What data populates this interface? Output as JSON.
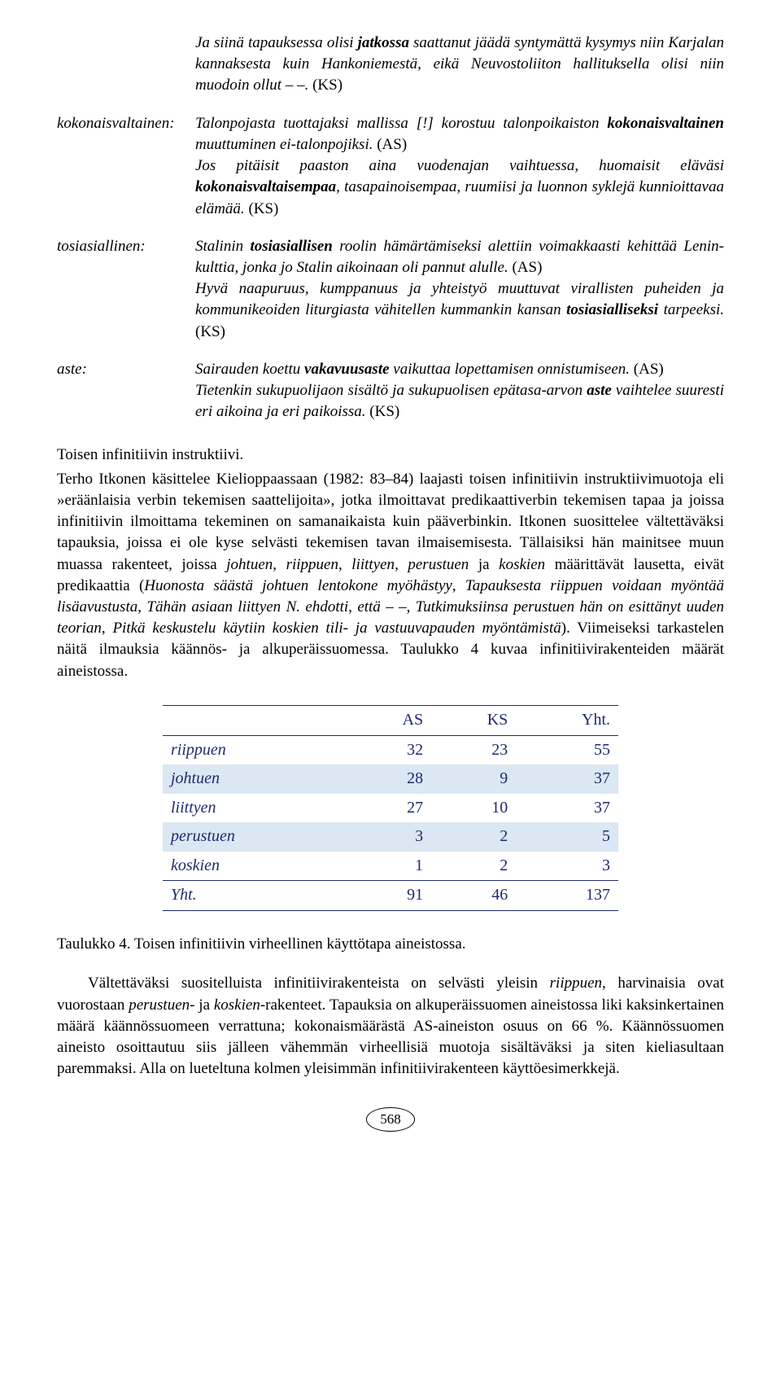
{
  "entries": [
    {
      "term": "",
      "html": "Ja siinä tapauksessa olisi <span class='bi'>jatkossa</span> saattanut jäädä syntymättä kysymys niin Karjalan kannaksesta kuin Hankoniemestä, eikä Neuvostoliiton hallituksella olisi niin muodoin ollut – –. <span class='r'>(KS)</span>"
    },
    {
      "term": "kokonaisvaltainen:",
      "html": "Talonpojasta tuottajaksi mallissa [!] korostuu talonpoikaiston <span class='bi'>kokonaisvaltainen</span> muuttuminen ei-talonpojiksi. <span class='r'>(AS)</span><br>Jos pitäisit paaston aina vuodenajan vaihtuessa, huomaisit eläväsi <span class='bi'>kokonaisvaltaisempaa</span>, tasapainoisempaa, ruumiisi ja luonnon syklejä kunnioittavaa elämää. <span class='r'>(KS)</span>"
    },
    {
      "term": "tosiasiallinen:",
      "html": "Stalinin <span class='bi'>tosiasiallisen</span> roolin hämärtämiseksi alettiin voimakkaasti kehittää Lenin-kulttia, jonka jo Stalin aikoinaan oli pannut alulle. <span class='r'>(AS)</span><br>Hyvä naapuruus, kumppanuus ja yhteistyö muuttuvat virallisten puheiden ja kommunikeoiden liturgiasta vähitellen kummankin kansan <span class='bi'>tosiasialliseksi</span> tarpeeksi. <span class='r'>(KS)</span>"
    },
    {
      "term": "aste:",
      "html": "Sairauden koettu <span class='bi'>vakavuusaste</span> vaikuttaa lopettamisen onnistumiseen. <span class='r'>(AS)</span><br>Tietenkin sukupuolijaon sisältö ja sukupuolisen epätasa-arvon <span class='bi'>aste</span> vaihtelee suuresti eri aikoina ja eri paikoissa. <span class='r'>(KS)</span>"
    }
  ],
  "heading": "Toisen infinitiivin instruktiivi.",
  "para1": "Terho Itkonen käsittelee Kielioppaassaan (1982: 83–84) laajasti toisen infinitiivin instruktiivimuotoja eli »eräänlaisia verbin tekemisen saattelijoita», jotka ilmoittavat predikaattiverbin tekemisen tapaa ja joissa infinitiivin ilmoittama tekeminen on samanaikaista kuin pääverbinkin. Itkonen suosittelee vältettäväksi tapauksia, joissa ei ole kyse selvästi tekemisen tavan ilmaisemisesta. Tällaisiksi hän mainitsee muun muassa rakenteet, joissa <span class='i'>johtuen</span>, <span class='i'>riippuen</span>, <span class='i'>liittyen</span>, <span class='i'>perustuen</span> ja <span class='i'>koskien</span> määrittävät lausetta, eivät predikaattia (<span class='i'>Huonosta säästä johtuen lentokone myöhästyy</span>, <span class='i'>Tapauksesta riippuen voidaan myöntää lisäavustusta</span>, <span class='i'>Tähän asiaan liittyen N. ehdotti, että – –</span>, <span class='i'>Tutkimuksiinsa perustuen hän on esittänyt uuden teorian</span>, <span class='i'>Pitkä keskustelu käytiin koskien tili- ja vastuuvapauden myöntämistä</span>). Viimeiseksi tarkastelen näitä ilmauksia käännös- ja alkuperäissuomessa. Taulukko 4 kuvaa infinitiivirakenteiden määrät aineistossa.",
  "table": {
    "columns": [
      "",
      "AS",
      "KS",
      "Yht."
    ],
    "rows": [
      [
        "riippuen",
        "32",
        "23",
        "55"
      ],
      [
        "johtuen",
        "28",
        "9",
        "37"
      ],
      [
        "liittyen",
        "27",
        "10",
        "37"
      ],
      [
        "perustuen",
        "3",
        "2",
        "5"
      ],
      [
        "koskien",
        "1",
        "2",
        "3"
      ],
      [
        "Yht.",
        "91",
        "46",
        "137"
      ]
    ],
    "shaded_rows": [
      1,
      3
    ],
    "text_color": "#1f2a6e",
    "shade_color": "#dbe7f2"
  },
  "caption": "Taulukko 4. Toisen infinitiivin virheellinen käyttötapa aineistossa.",
  "para2": "Vältettäväksi suositelluista infinitiivirakenteista on selvästi yleisin <span class='i'>riippuen</span>, harvinaisia ovat vuorostaan <span class='i'>perustuen</span>- ja <span class='i'>koskien</span>-rakenteet. Tapauksia on alkuperäissuomen aineistossa liki kaksinkertainen määrä käännössuomeen verrattuna; kokonaismäärästä AS-aineiston osuus on 66 %. Käännössuomen aineisto osoittautuu siis jälleen vähemmän virheellisiä muotoja sisältäväksi ja siten kieliasultaan paremmaksi. Alla on lueteltuna kolmen yleisimmän infinitiivirakenteen käyttöesimerkkejä.",
  "pagenum": "568"
}
